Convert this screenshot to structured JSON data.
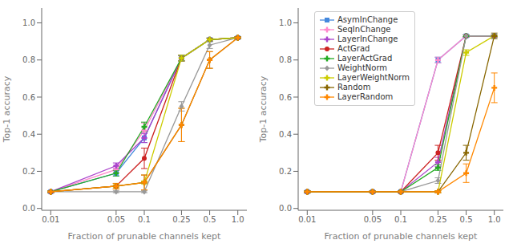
{
  "chart_data": [
    {
      "type": "line",
      "xlabel": "Fraction of prunable channels kept",
      "ylabel": "Top-1 accuracy",
      "log": "x",
      "grid": false,
      "x": [
        0.01,
        0.05,
        0.1,
        0.25,
        0.5,
        1.0
      ],
      "xlim": [
        0.008,
        1.25
      ],
      "ylim": [
        -0.01,
        1.08
      ],
      "xticks": [
        0.01,
        0.05,
        0.1,
        0.25,
        0.5,
        {
          "value": 1.0,
          "label": "1.0"
        }
      ],
      "yticks": [
        {
          "value": 0.0,
          "label": "0.0"
        },
        0.2,
        0.4,
        0.6,
        0.8,
        {
          "value": 1.0,
          "label": "1.0"
        }
      ],
      "series": [
        {
          "name": "AsymInChange",
          "color": "#4488dd",
          "marker": "square",
          "values": [
            0.09,
            0.19,
            0.38,
            0.81,
            0.91,
            0.92
          ],
          "errors": [
            0.005,
            0.015,
            0.025,
            0.015,
            0.008,
            0.005
          ]
        },
        {
          "name": "SeqInChange",
          "color": "#ff88cc",
          "marker": "plus",
          "values": [
            0.09,
            0.21,
            0.42,
            0.81,
            0.91,
            0.92
          ],
          "errors": [
            0.005,
            0.015,
            0.04,
            0.015,
            0.008,
            0.005
          ]
        },
        {
          "name": "LayerInChange",
          "color": "#aa44cc",
          "marker": "plus",
          "values": [
            0.09,
            0.23,
            0.38,
            0.81,
            0.91,
            0.92
          ],
          "errors": [
            0.005,
            0.015,
            0.025,
            0.015,
            0.008,
            0.005
          ]
        },
        {
          "name": "ActGrad",
          "color": "#cc2222",
          "marker": "circle",
          "values": [
            0.09,
            0.12,
            0.27,
            0.81,
            0.91,
            0.92
          ],
          "errors": [
            0.005,
            0.015,
            0.055,
            0.015,
            0.008,
            0.005
          ]
        },
        {
          "name": "LayerActGrad",
          "color": "#22aa22",
          "marker": "plus",
          "values": [
            0.09,
            0.19,
            0.44,
            0.81,
            0.91,
            0.92
          ],
          "errors": [
            0.005,
            0.015,
            0.025,
            0.015,
            0.008,
            0.005
          ]
        },
        {
          "name": "WeightNorm",
          "color": "#999999",
          "marker": "diamond",
          "values": [
            0.09,
            0.09,
            0.09,
            0.55,
            0.88,
            0.92
          ],
          "errors": [
            0.005,
            0.005,
            0.005,
            0.025,
            0.018,
            0.005
          ]
        },
        {
          "name": "LayerWeightNorm",
          "color": "#cccc00",
          "marker": "plus",
          "values": [
            0.09,
            0.12,
            0.14,
            0.81,
            0.91,
            0.92
          ],
          "errors": [
            0.005,
            0.008,
            0.008,
            0.015,
            0.008,
            0.005
          ]
        },
        {
          "name": "Random",
          "color": "#886600",
          "marker": "plus",
          "values": [
            0.09,
            0.12,
            0.14,
            0.45,
            0.8,
            0.92
          ],
          "errors": [
            0.005,
            0.015,
            0.04,
            0.09,
            0.045,
            0.005
          ]
        },
        {
          "name": "LayerRandom",
          "color": "#ff8800",
          "marker": "plus",
          "values": [
            0.09,
            0.12,
            0.14,
            0.45,
            0.8,
            0.92
          ],
          "errors": [
            0.005,
            0.015,
            0.04,
            0.09,
            0.045,
            0.005
          ]
        }
      ]
    },
    {
      "type": "line",
      "xlabel": "Fraction of prunable channels kept",
      "ylabel": "Top-1 accuracy",
      "log": "x",
      "grid": false,
      "legend": "upper left",
      "x": [
        0.01,
        0.05,
        0.1,
        0.25,
        0.5,
        1.0
      ],
      "xlim": [
        0.008,
        1.25
      ],
      "ylim": [
        -0.01,
        1.08
      ],
      "xticks": [
        0.01,
        0.05,
        0.1,
        0.25,
        0.5,
        {
          "value": 1.0,
          "label": "1.0"
        }
      ],
      "yticks": [
        {
          "value": 0.0,
          "label": "0.0"
        },
        0.2,
        0.4,
        0.6,
        0.8,
        {
          "value": 1.0,
          "label": "1.0"
        }
      ],
      "series": [
        {
          "name": "AsymInChange",
          "color": "#4488dd",
          "marker": "square",
          "values": [
            0.09,
            0.09,
            0.09,
            0.8,
            0.93,
            0.93
          ],
          "errors": [
            0.005,
            0.005,
            0.005,
            0.015,
            0.005,
            0.005
          ]
        },
        {
          "name": "SeqInChange",
          "color": "#ff88cc",
          "marker": "plus",
          "values": [
            0.09,
            0.09,
            0.09,
            0.8,
            0.93,
            0.93
          ],
          "errors": [
            0.005,
            0.005,
            0.005,
            0.015,
            0.005,
            0.005
          ]
        },
        {
          "name": "LayerInChange",
          "color": "#aa44cc",
          "marker": "plus",
          "values": [
            0.09,
            0.09,
            0.09,
            0.25,
            0.93,
            0.93
          ],
          "errors": [
            0.005,
            0.005,
            0.005,
            0.025,
            0.005,
            0.005
          ]
        },
        {
          "name": "ActGrad",
          "color": "#cc2222",
          "marker": "circle",
          "values": [
            0.09,
            0.09,
            0.09,
            0.3,
            0.93,
            0.93
          ],
          "errors": [
            0.005,
            0.005,
            0.005,
            0.04,
            0.005,
            0.005
          ]
        },
        {
          "name": "LayerActGrad",
          "color": "#22aa22",
          "marker": "plus",
          "values": [
            0.09,
            0.09,
            0.09,
            0.22,
            0.93,
            0.93
          ],
          "errors": [
            0.005,
            0.005,
            0.005,
            0.015,
            0.005,
            0.005
          ]
        },
        {
          "name": "WeightNorm",
          "color": "#999999",
          "marker": "diamond",
          "values": [
            0.09,
            0.09,
            0.09,
            0.15,
            0.93,
            0.93
          ],
          "errors": [
            0.005,
            0.005,
            0.005,
            0.015,
            0.005,
            0.005
          ]
        },
        {
          "name": "LayerWeightNorm",
          "color": "#cccc00",
          "marker": "plus",
          "values": [
            0.09,
            0.09,
            0.09,
            0.09,
            0.84,
            0.93
          ],
          "errors": [
            0.005,
            0.005,
            0.005,
            0.005,
            0.015,
            0.005
          ]
        },
        {
          "name": "Random",
          "color": "#886600",
          "marker": "plus",
          "values": [
            0.09,
            0.09,
            0.09,
            0.09,
            0.3,
            0.93
          ],
          "errors": [
            0.005,
            0.005,
            0.005,
            0.005,
            0.04,
            0.015
          ]
        },
        {
          "name": "LayerRandom",
          "color": "#ff8800",
          "marker": "plus",
          "values": [
            0.09,
            0.09,
            0.09,
            0.09,
            0.19,
            0.65
          ],
          "errors": [
            0.005,
            0.005,
            0.005,
            0.005,
            0.05,
            0.08
          ]
        }
      ]
    }
  ]
}
